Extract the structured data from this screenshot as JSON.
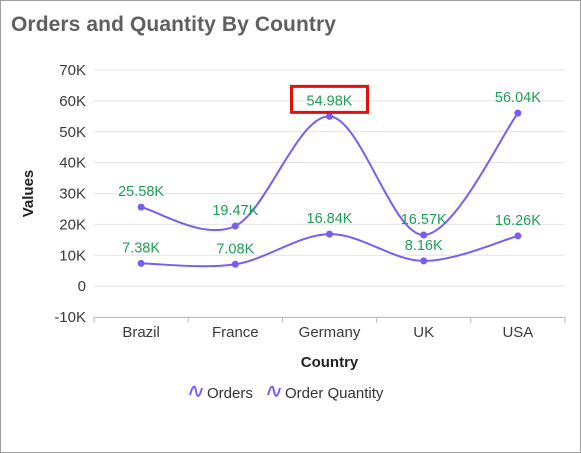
{
  "title": "Orders and Quantity By Country",
  "chart_data": {
    "type": "line",
    "smooth": true,
    "title": "Orders and Quantity By Country",
    "xlabel": "Country",
    "ylabel": "Values",
    "categories": [
      "Brazil",
      "France",
      "Germany",
      "UK",
      "USA"
    ],
    "ylim": [
      -10000,
      70000
    ],
    "yticks": [
      -10000,
      0,
      10000,
      20000,
      30000,
      40000,
      50000,
      60000,
      70000
    ],
    "ytick_labels": [
      "-10K",
      "0",
      "10K",
      "20K",
      "30K",
      "40K",
      "50K",
      "60K",
      "70K"
    ],
    "grid": true,
    "legend_position": "bottom",
    "series": [
      {
        "name": "Orders",
        "values": [
          7380,
          7080,
          16840,
          8160,
          16260
        ],
        "labels": [
          "7.38K",
          "7.08K",
          "16.84K",
          "8.16K",
          "16.26K"
        ],
        "color": "#7b5cf0"
      },
      {
        "name": "Order Quantity",
        "values": [
          25580,
          19470,
          54980,
          16570,
          56040
        ],
        "labels": [
          "25.58K",
          "19.47K",
          "54.98K",
          "16.57K",
          "56.04K"
        ],
        "color": "#7b5cf0"
      }
    ],
    "highlight": {
      "series": 1,
      "index": 2,
      "color": "#e01010"
    },
    "label_color": "#1e9e55"
  }
}
